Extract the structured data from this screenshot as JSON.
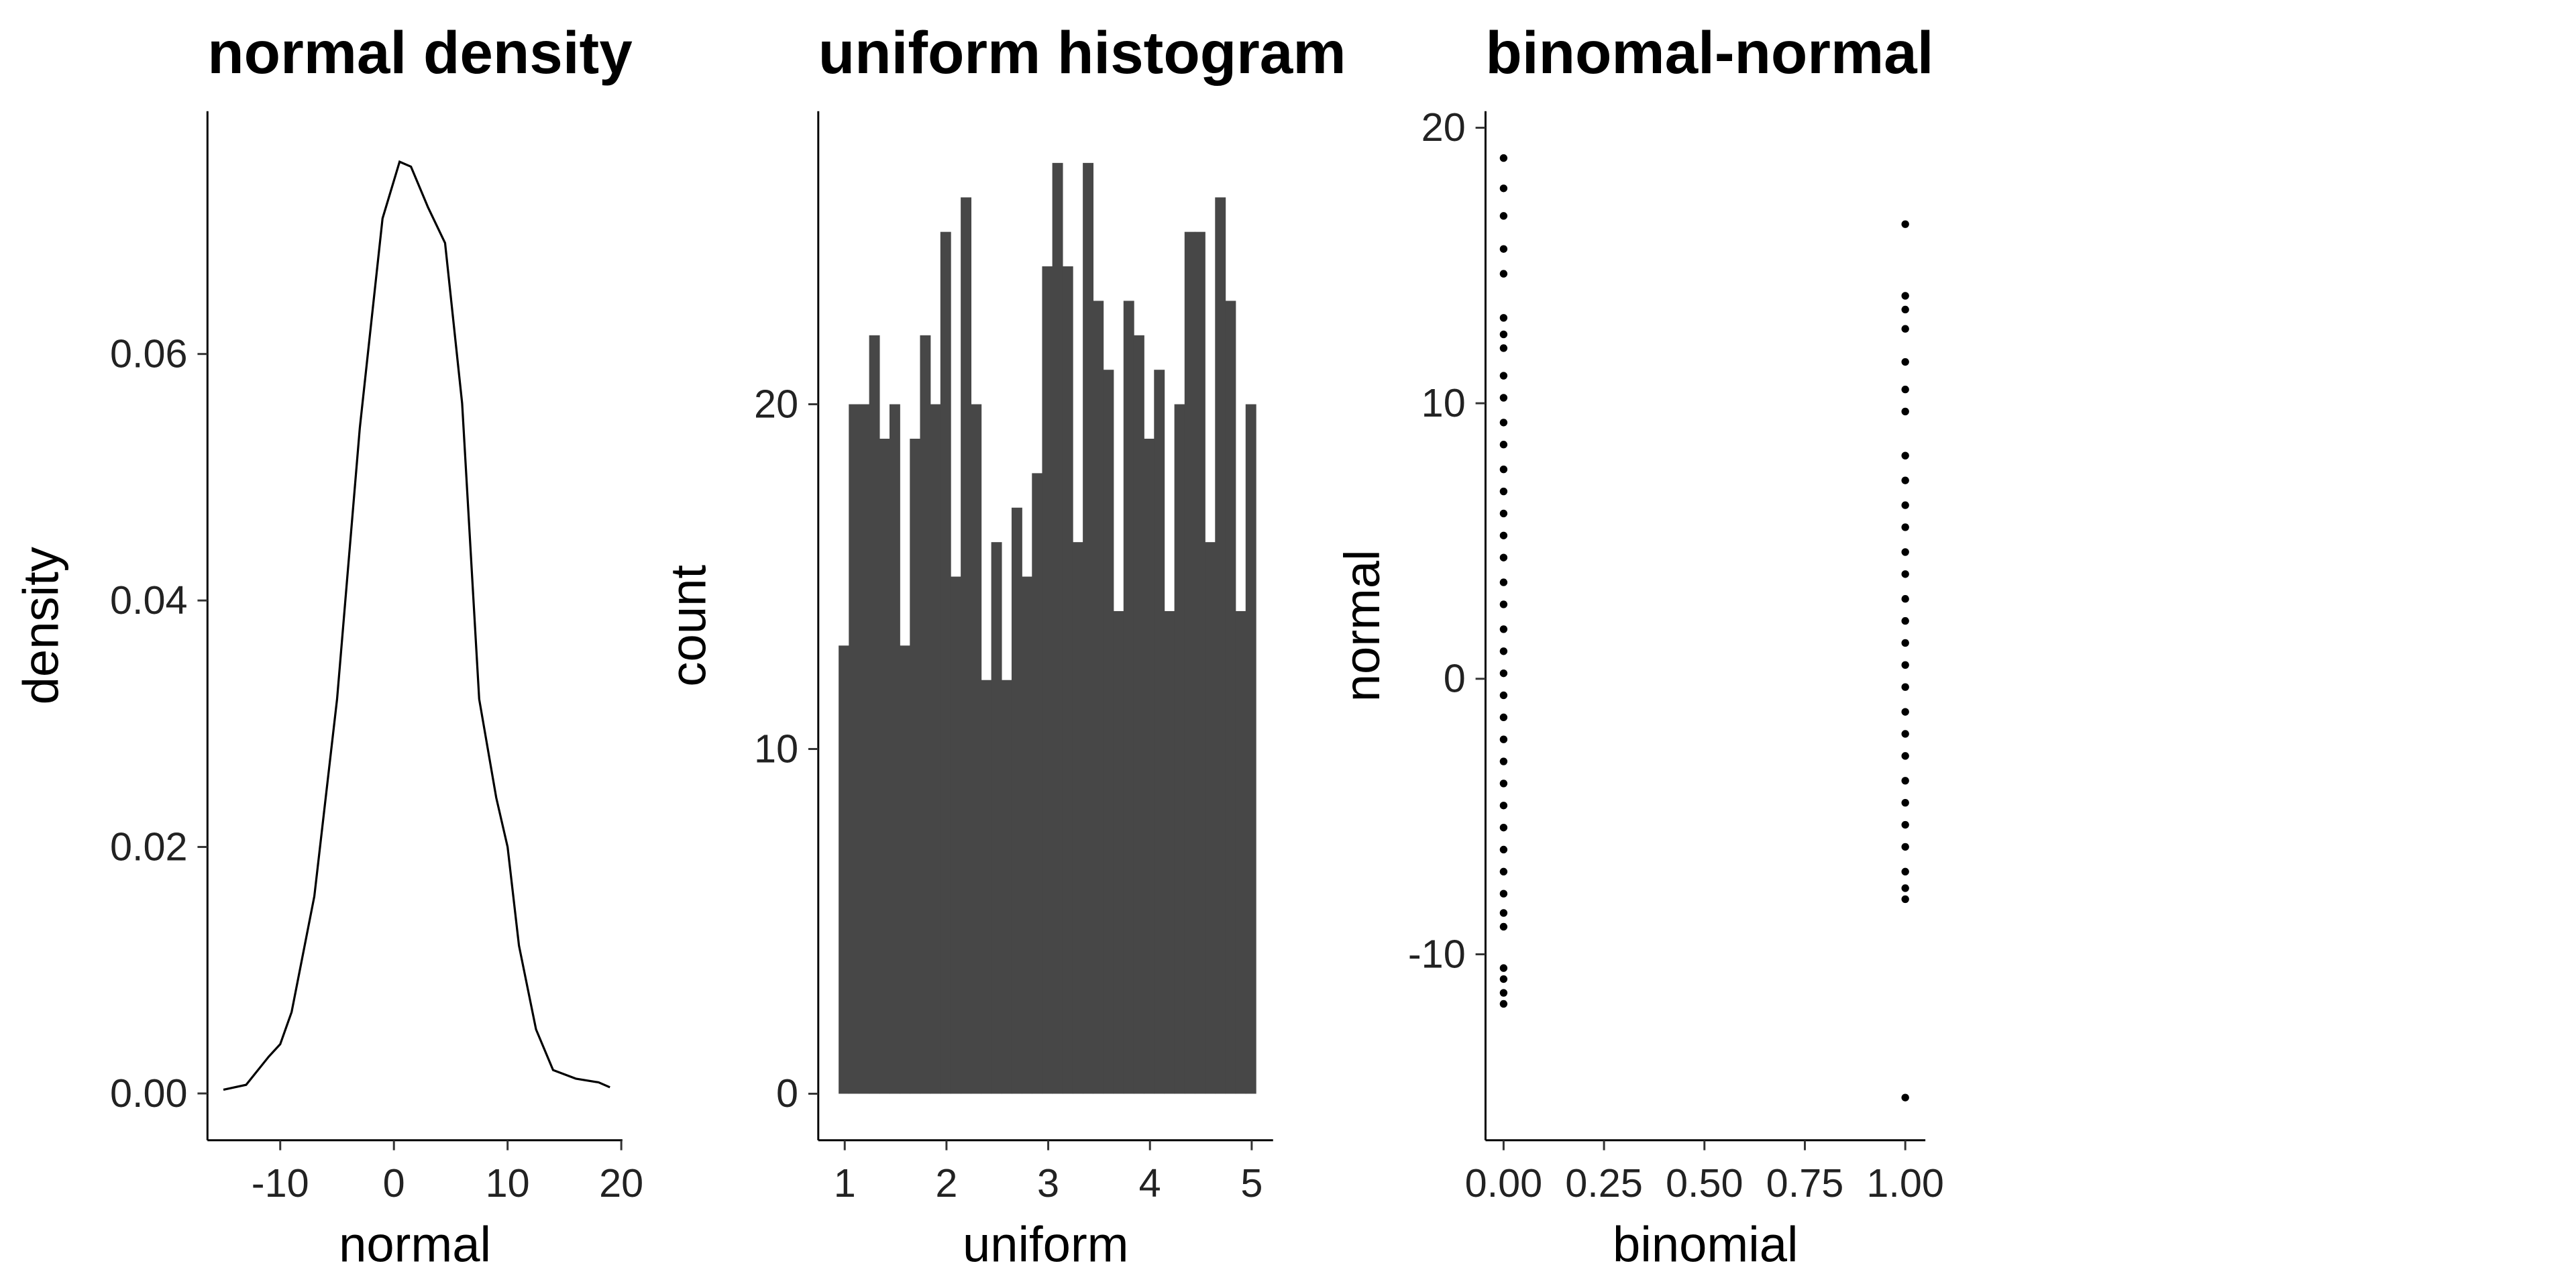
{
  "chart_data": [
    {
      "type": "line",
      "title": "normal density",
      "x_label": "normal",
      "y_label": "density",
      "color": "#000000",
      "x": [
        -15,
        -13,
        -11,
        -10,
        -9,
        -7,
        -5,
        -3,
        -1,
        0.5,
        1.5,
        3,
        4.5,
        6,
        7.5,
        9,
        10,
        11,
        12.5,
        14,
        16,
        18,
        19
      ],
      "values": [
        0.0003,
        0.0007,
        0.003,
        0.004,
        0.0066,
        0.016,
        0.032,
        0.054,
        0.071,
        0.0756,
        0.0752,
        0.0719,
        0.069,
        0.056,
        0.032,
        0.024,
        0.02,
        0.012,
        0.0052,
        0.0019,
        0.0012,
        0.0009,
        0.0005
      ],
      "xlim": [
        -16.4,
        20.1
      ],
      "xticks": [
        -10,
        0,
        10,
        20
      ],
      "ylim": [
        -0.0038,
        0.0797
      ],
      "yticks": [
        {
          "value": 0,
          "label": "0.00"
        },
        {
          "value": 0.02,
          "label": "0.02"
        },
        {
          "value": 0.04,
          "label": "0.04"
        },
        {
          "value": 0.06,
          "label": "0.06"
        }
      ]
    },
    {
      "type": "histogram",
      "title": "uniform histogram",
      "x_label": "uniform",
      "y_label": "count",
      "color": "#474747",
      "bins": [
        0.94,
        1.04,
        1.14,
        1.24,
        1.34,
        1.44,
        1.54,
        1.64,
        1.74,
        1.84,
        1.94,
        2.04,
        2.14,
        2.24,
        2.34,
        2.44,
        2.54,
        2.64,
        2.74,
        2.84,
        2.94,
        3.04,
        3.14,
        3.24,
        3.34,
        3.44,
        3.54,
        3.64,
        3.74,
        3.84,
        3.94,
        4.04,
        4.14,
        4.24,
        4.34,
        4.44,
        4.54,
        4.64,
        4.74,
        4.84,
        4.94,
        5.04
      ],
      "values": [
        13,
        20,
        20,
        22,
        19,
        20,
        13,
        19,
        22,
        20,
        25,
        15,
        26,
        20,
        12,
        16,
        12,
        17,
        15,
        18,
        24,
        27,
        24,
        16,
        27,
        23,
        21,
        14,
        23,
        22,
        19,
        21,
        14,
        20,
        25,
        25,
        16,
        26,
        23,
        14,
        20
      ],
      "xlim": [
        0.74,
        5.21
      ],
      "xticks": [
        1,
        2,
        3,
        4,
        5
      ],
      "ylim": [
        -1.35,
        28.5
      ],
      "yticks": [
        0,
        10,
        20
      ]
    },
    {
      "type": "scatter",
      "title": "binomal-normal",
      "x_label": "binomial",
      "y_label": "normal",
      "color": "#000000",
      "x": [
        0,
        0,
        0,
        0,
        0,
        0,
        0,
        0,
        0,
        0,
        0,
        0,
        0,
        0,
        0,
        0,
        0,
        0,
        0,
        0,
        0,
        0,
        0,
        0,
        0,
        0,
        0,
        0,
        0,
        0,
        0,
        0,
        0,
        0,
        0,
        0,
        0,
        0,
        1,
        1,
        1,
        1,
        1,
        1,
        1,
        1,
        1,
        1,
        1,
        1,
        1,
        1,
        1,
        1,
        1,
        1,
        1,
        1,
        1,
        1,
        1,
        1,
        1,
        1,
        1,
        1,
        1
      ],
      "values": [
        18.9,
        17.8,
        16.8,
        15.6,
        14.7,
        13.1,
        12.5,
        12.0,
        11.0,
        10.2,
        9.3,
        8.5,
        7.6,
        6.8,
        6.0,
        5.2,
        4.4,
        3.5,
        2.7,
        1.8,
        1.0,
        0.2,
        -0.6,
        -1.4,
        -2.2,
        -3.0,
        -3.8,
        -4.6,
        -5.4,
        -6.2,
        -7.0,
        -7.8,
        -8.5,
        -9.0,
        -10.5,
        -10.9,
        -11.4,
        -11.8,
        16.5,
        13.9,
        13.4,
        12.7,
        11.5,
        10.5,
        9.7,
        8.1,
        7.2,
        6.3,
        5.5,
        4.6,
        3.8,
        2.9,
        2.1,
        1.3,
        0.5,
        -0.3,
        -1.2,
        -2.0,
        -2.8,
        -3.7,
        -4.5,
        -5.3,
        -6.1,
        -7.0,
        -7.6,
        -8.0,
        -15.2
      ],
      "xlim": [
        -0.045,
        1.05
      ],
      "xticks": [
        {
          "value": 0,
          "label": "0.00"
        },
        {
          "value": 0.25,
          "label": "0.25"
        },
        {
          "value": 0.5,
          "label": "0.50"
        },
        {
          "value": 0.75,
          "label": "0.75"
        },
        {
          "value": 1,
          "label": "1.00"
        }
      ],
      "ylim": [
        -16.75,
        20.6
      ],
      "yticks": [
        -10,
        0,
        10,
        20
      ]
    }
  ]
}
